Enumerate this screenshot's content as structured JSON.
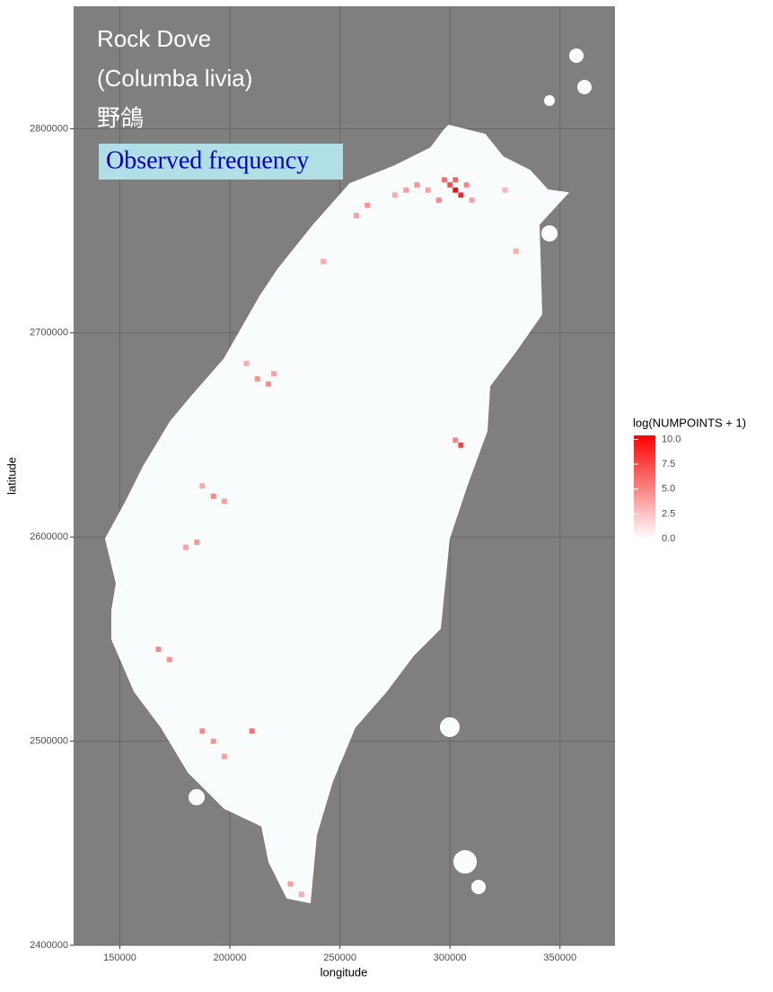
{
  "chart_data": {
    "type": "tile",
    "title": "Rock Dove",
    "subtitle": "(Columba livia)",
    "local_name": "野鴿",
    "annotation": "Observed frequency",
    "x_label": "longitude",
    "y_label": "latitude",
    "xlim": [
      129000,
      375000
    ],
    "ylim": [
      2400000,
      2860000
    ],
    "xticks": [
      150000,
      200000,
      250000,
      300000,
      350000
    ],
    "yticks": [
      2400000,
      2500000,
      2600000,
      2700000,
      2800000
    ],
    "grid": true,
    "legend_title": "log(NUMPOINTS + 1)",
    "color_low": "#ffffff",
    "color_high": "#ff0000",
    "color_lim": [
      0,
      10.4
    ],
    "color_ticks": [
      {
        "value": 0,
        "label": "0.0"
      },
      {
        "value": 2.5,
        "label": "2.5"
      },
      {
        "value": 5,
        "label": "5.0"
      },
      {
        "value": 7.5,
        "label": "7.5"
      },
      {
        "value": 10,
        "label": "10.0"
      }
    ],
    "x": [
      302500,
      305000,
      300000,
      297500,
      307500,
      302500,
      295000,
      310000,
      290000,
      285000,
      280000,
      275000,
      305000,
      302500,
      217500,
      212500,
      220000,
      207500,
      192500,
      197500,
      187500,
      185000,
      180000,
      167500,
      172500,
      187500,
      192500,
      210000,
      197500,
      227500,
      232500,
      325000,
      330000,
      257500,
      262500,
      242500
    ],
    "y": [
      2770000,
      2767500,
      2772500,
      2775000,
      2772500,
      2775000,
      2765000,
      2765000,
      2770000,
      2772500,
      2770000,
      2767500,
      2645000,
      2647500,
      2675000,
      2677500,
      2680000,
      2685000,
      2620000,
      2617500,
      2625000,
      2597500,
      2595000,
      2545000,
      2540000,
      2505000,
      2500000,
      2505000,
      2492500,
      2430000,
      2425000,
      2770000,
      2740000,
      2757500,
      2762500,
      2735000
    ],
    "values": [
      10.2,
      9,
      7.5,
      6,
      5,
      6.5,
      5,
      4,
      4,
      4.5,
      4,
      3.5,
      8,
      5,
      5,
      4.5,
      4,
      3.5,
      5,
      4,
      3.5,
      4.5,
      4,
      5,
      4.5,
      5,
      4.5,
      6,
      4,
      4,
      3.5,
      3,
      3.5,
      4,
      4.5,
      3.5
    ]
  }
}
